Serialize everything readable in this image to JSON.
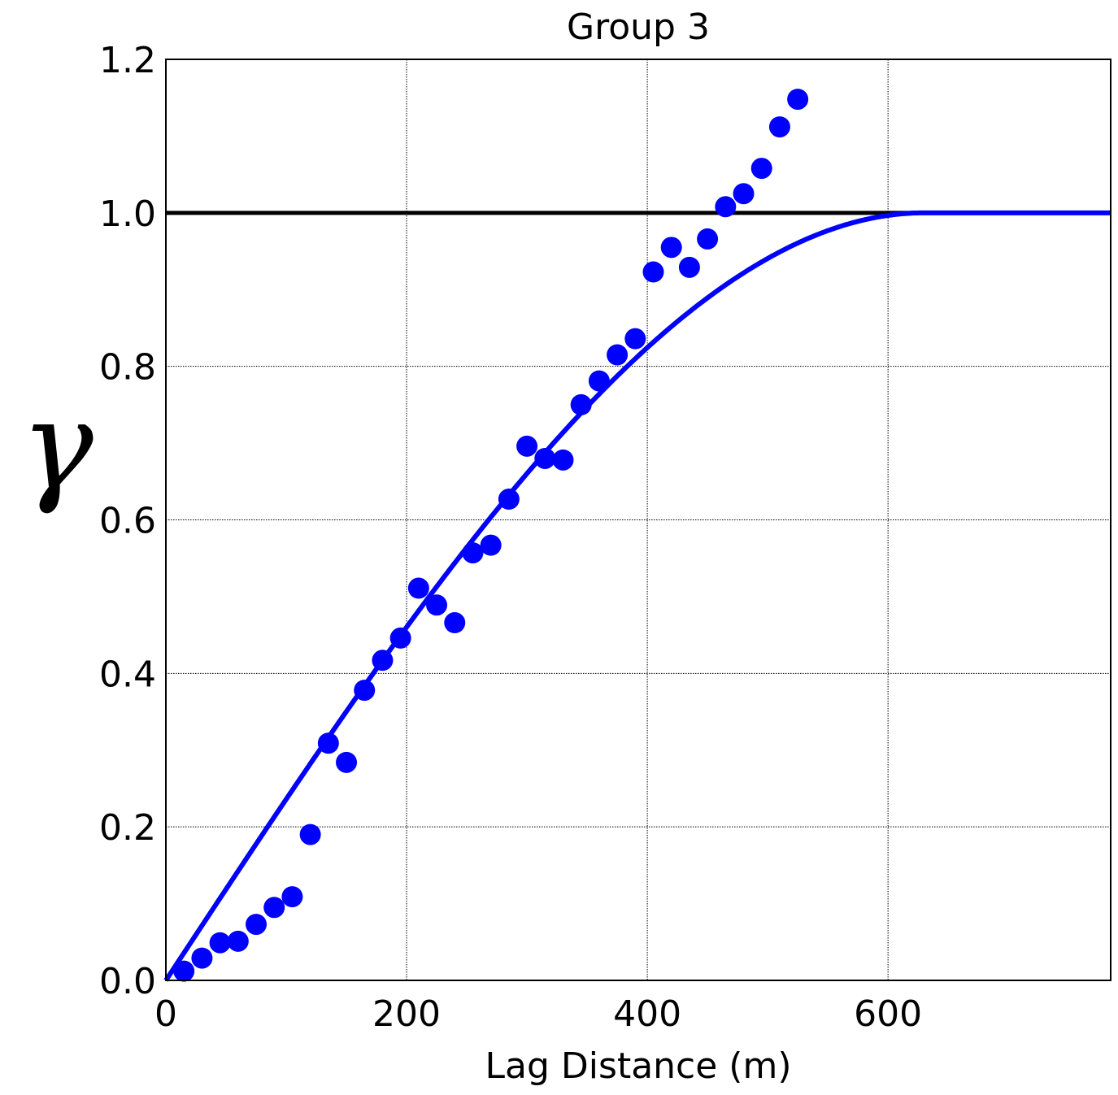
{
  "chart_data": {
    "type": "scatter",
    "title": "Group 3",
    "xlabel": "Lag Distance (m)",
    "ylabel": "γ",
    "xlim": [
      0,
      785
    ],
    "ylim": [
      0,
      1.2
    ],
    "xticks": [
      "0",
      "200",
      "400",
      "600"
    ],
    "yticks": [
      "0.0",
      "0.2",
      "0.4",
      "0.6",
      "0.8",
      "1.0",
      "1.2"
    ],
    "grid": true,
    "colors": {
      "points": "#0000ff",
      "model": "#0000ff",
      "sill": "#000000"
    },
    "series": [
      {
        "kind": "points",
        "x": [
          15,
          30,
          45,
          60,
          75,
          90,
          105,
          120,
          135,
          150,
          165,
          180,
          195,
          210,
          225,
          240,
          255,
          270,
          285,
          300,
          315,
          330,
          345,
          360,
          375,
          390,
          405,
          420,
          435,
          450,
          465,
          480,
          495,
          510,
          525
        ],
        "y": [
          0.012,
          0.029,
          0.049,
          0.051,
          0.073,
          0.095,
          0.109,
          0.19,
          0.309,
          0.284,
          0.378,
          0.417,
          0.446,
          0.511,
          0.489,
          0.466,
          0.557,
          0.567,
          0.627,
          0.696,
          0.68,
          0.678,
          0.75,
          0.781,
          0.815,
          0.836,
          0.923,
          0.955,
          0.929,
          0.966,
          1.008,
          1.025,
          1.058,
          1.112,
          1.148
        ]
      },
      {
        "kind": "model-line",
        "model": "spherical",
        "sill": 1.0,
        "range": 630
      },
      {
        "kind": "sill-line",
        "y": 1.0
      }
    ]
  }
}
